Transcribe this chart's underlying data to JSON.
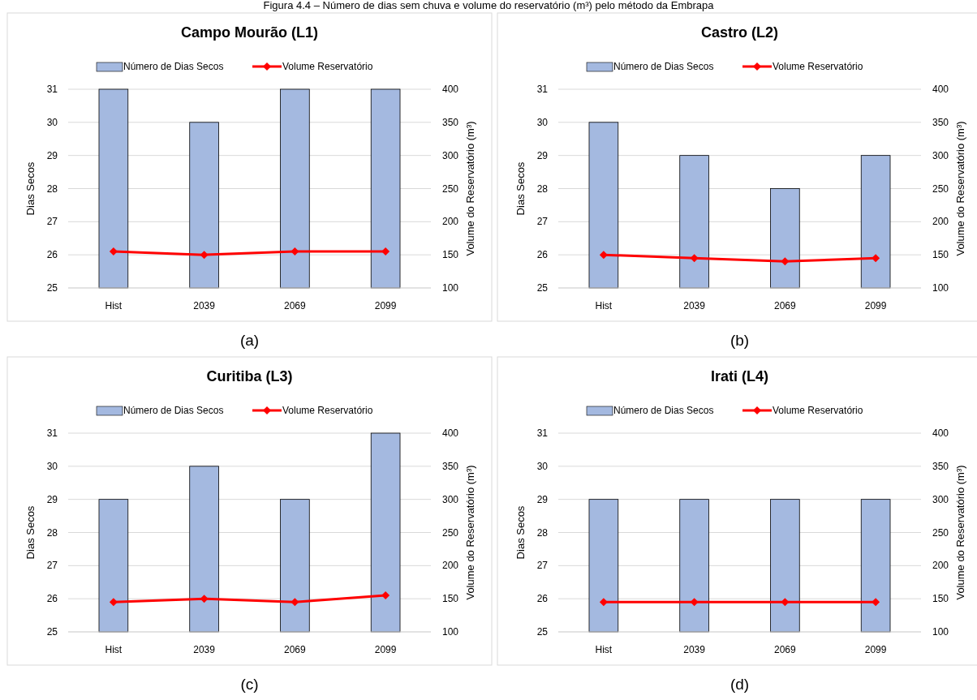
{
  "chart_data": [
    {
      "type": "bar",
      "title": "Campo Mourão (L1)",
      "categories": [
        "Hist",
        "2039",
        "2069",
        "2099"
      ],
      "ylabel": "Dias Secos",
      "y2label": "Volume do Reservatório (m³)",
      "ylim": [
        25,
        31
      ],
      "yticks": [
        25,
        26,
        27,
        28,
        29,
        30,
        31
      ],
      "y2lim": [
        100,
        400
      ],
      "y2ticks": [
        100,
        150,
        200,
        250,
        300,
        350,
        400
      ],
      "grid": "y",
      "legend": "top",
      "marker": "diamond",
      "annotations": [
        "(a)",
        "Figura 4.4 – Número de dias sem chuva e volume do reservatório (m³) pelo método da Embrapa"
      ],
      "series": [
        {
          "name": "Número de Dias Secos",
          "color": "#a4b9e0",
          "values": [
            31,
            30,
            31,
            31
          ]
        },
        {
          "name": "Volume Reservatório",
          "type": "line",
          "axis": "y2",
          "color": "#ff0000",
          "values": [
            155,
            150,
            155,
            155
          ]
        }
      ]
    },
    {
      "type": "bar",
      "title": "Castro (L2)",
      "categories": [
        "Hist",
        "2039",
        "2069",
        "2099"
      ],
      "ylabel": "Dias Secos",
      "y2label": "Volume do Reservatório (m³)",
      "ylim": [
        25,
        31
      ],
      "yticks": [
        25,
        26,
        27,
        28,
        29,
        30,
        31
      ],
      "y2lim": [
        100,
        400
      ],
      "y2ticks": [
        100,
        150,
        200,
        250,
        300,
        350,
        400
      ],
      "grid": "y",
      "legend": "top",
      "marker": "diamond",
      "annotations": [
        "(b)"
      ],
      "series": [
        {
          "name": "Número de Dias Secos",
          "color": "#a4b9e0",
          "values": [
            30,
            29,
            28,
            29
          ]
        },
        {
          "name": "Volume Reservatório",
          "type": "line",
          "axis": "y2",
          "color": "#ff0000",
          "values": [
            150,
            145,
            140,
            145
          ]
        }
      ]
    },
    {
      "type": "bar",
      "title": "Curitiba (L3)",
      "categories": [
        "Hist",
        "2039",
        "2069",
        "2099"
      ],
      "ylabel": "Dias Secos",
      "y2label": "Volume do Reservatório (m³)",
      "ylim": [
        25,
        31
      ],
      "yticks": [
        25,
        26,
        27,
        28,
        29,
        30,
        31
      ],
      "y2lim": [
        100,
        400
      ],
      "y2ticks": [
        100,
        150,
        200,
        250,
        300,
        350,
        400
      ],
      "grid": "y",
      "legend": "top",
      "marker": "diamond",
      "annotations": [
        "(c)"
      ],
      "series": [
        {
          "name": "Número de Dias Secos",
          "color": "#a4b9e0",
          "values": [
            29,
            30,
            29,
            31
          ]
        },
        {
          "name": "Volume Reservatório",
          "type": "line",
          "axis": "y2",
          "color": "#ff0000",
          "values": [
            145,
            150,
            145,
            155
          ]
        }
      ]
    },
    {
      "type": "bar",
      "title": "Irati (L4)",
      "categories": [
        "Hist",
        "2039",
        "2069",
        "2099"
      ],
      "ylabel": "Dias Secos",
      "y2label": "Volume do Reservatório (m³)",
      "ylim": [
        25,
        31
      ],
      "yticks": [
        25,
        26,
        27,
        28,
        29,
        30,
        31
      ],
      "y2lim": [
        100,
        400
      ],
      "y2ticks": [
        100,
        150,
        200,
        250,
        300,
        350,
        400
      ],
      "grid": "y",
      "legend": "top",
      "marker": "diamond",
      "annotations": [
        "(d)"
      ],
      "series": [
        {
          "name": "Número de Dias Secos",
          "color": "#a4b9e0",
          "values": [
            29,
            29,
            29,
            29
          ]
        },
        {
          "name": "Volume Reservatório",
          "type": "line",
          "axis": "y2",
          "color": "#ff0000",
          "values": [
            145,
            145,
            145,
            145
          ]
        }
      ]
    }
  ]
}
